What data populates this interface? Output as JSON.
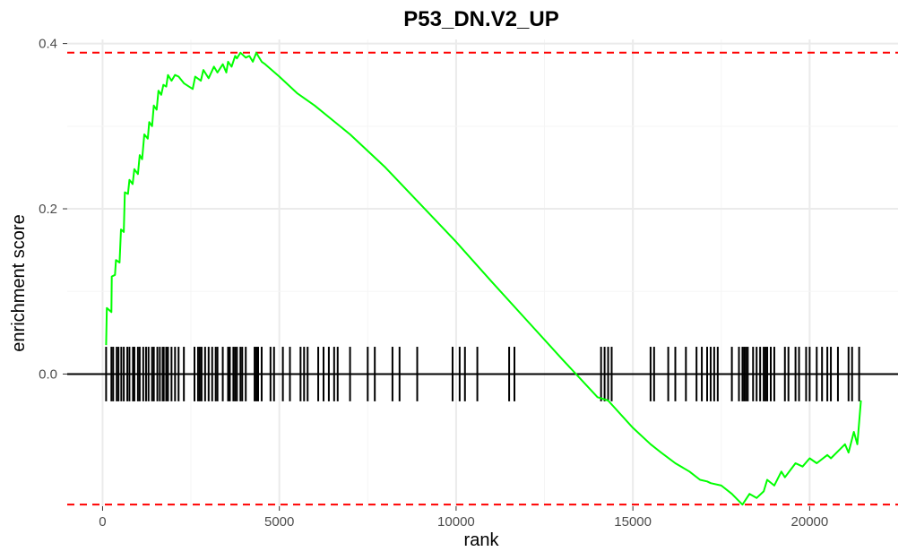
{
  "chart_data": {
    "type": "line",
    "title": "P53_DN.V2_UP",
    "xlabel": "rank",
    "ylabel": "enrichment score",
    "xlim": [
      -1000,
      22500
    ],
    "ylim": [
      -0.16,
      0.405
    ],
    "x_ticks": [
      0,
      5000,
      10000,
      15000,
      20000
    ],
    "x_tick_labels": [
      "0",
      "5000",
      "10000",
      "15000",
      "20000"
    ],
    "y_ticks": [
      0.0,
      0.2,
      0.4
    ],
    "y_tick_labels": [
      "0.0",
      "0.2",
      "0.4"
    ],
    "grid": true,
    "reference_lines": [
      {
        "kind": "max",
        "y": 0.389,
        "color": "#ff0000",
        "style": "dashed"
      },
      {
        "kind": "min",
        "y": -0.158,
        "color": "#ff0000",
        "style": "dashed"
      },
      {
        "kind": "zero",
        "y": 0.0,
        "color": "#000000",
        "style": "solid"
      }
    ],
    "series": [
      {
        "color": "#00ff00",
        "x": [
          100,
          120,
          250,
          260,
          350,
          380,
          480,
          520,
          600,
          630,
          720,
          760,
          850,
          900,
          1000,
          1050,
          1120,
          1180,
          1280,
          1320,
          1400,
          1450,
          1530,
          1580,
          1660,
          1720,
          1800,
          1850,
          1950,
          2050,
          2150,
          2300,
          2550,
          2620,
          2780,
          2850,
          3000,
          3150,
          3250,
          3400,
          3500,
          3550,
          3650,
          3750,
          3800,
          3900,
          4050,
          4150,
          4250,
          4350,
          4400,
          4500,
          4600,
          5000,
          5500,
          6000,
          7000,
          8000,
          9000,
          10000,
          11000,
          12000,
          13000,
          14000,
          14300,
          15000,
          15500,
          15800,
          16200,
          16600,
          16900,
          17100,
          17200,
          17500,
          17800,
          18100,
          18300,
          18500,
          18700,
          18800,
          19000,
          19200,
          19300,
          19600,
          19800,
          20000,
          20200,
          20500,
          20600,
          21000,
          21100,
          21250,
          21350,
          21450
        ],
        "y": [
          0.035,
          0.08,
          0.075,
          0.118,
          0.12,
          0.138,
          0.135,
          0.175,
          0.172,
          0.22,
          0.218,
          0.235,
          0.23,
          0.248,
          0.242,
          0.265,
          0.26,
          0.29,
          0.285,
          0.305,
          0.3,
          0.325,
          0.32,
          0.343,
          0.338,
          0.35,
          0.348,
          0.362,
          0.355,
          0.362,
          0.36,
          0.352,
          0.345,
          0.36,
          0.355,
          0.368,
          0.358,
          0.372,
          0.365,
          0.375,
          0.365,
          0.378,
          0.372,
          0.385,
          0.382,
          0.389,
          0.383,
          0.385,
          0.378,
          0.389,
          0.385,
          0.378,
          0.375,
          0.36,
          0.34,
          0.325,
          0.29,
          0.25,
          0.205,
          0.16,
          0.112,
          0.065,
          0.018,
          -0.028,
          -0.032,
          -0.065,
          -0.085,
          -0.095,
          -0.108,
          -0.118,
          -0.128,
          -0.13,
          -0.132,
          -0.135,
          -0.145,
          -0.158,
          -0.145,
          -0.15,
          -0.142,
          -0.128,
          -0.135,
          -0.118,
          -0.125,
          -0.108,
          -0.112,
          -0.102,
          -0.108,
          -0.098,
          -0.102,
          -0.085,
          -0.095,
          -0.07,
          -0.085,
          -0.032
        ]
      }
    ],
    "rug": {
      "y_range": [
        -0.033,
        0.033
      ],
      "color": "#000000",
      "positions": [
        100,
        250,
        300,
        400,
        450,
        530,
        600,
        700,
        760,
        860,
        900,
        1000,
        1050,
        1150,
        1230,
        1300,
        1400,
        1450,
        1550,
        1620,
        1700,
        1730,
        1800,
        1850,
        1950,
        2050,
        2150,
        2300,
        2600,
        2700,
        2750,
        2800,
        2900,
        3000,
        3100,
        3200,
        3250,
        3400,
        3550,
        3600,
        3700,
        3750,
        3800,
        3900,
        3950,
        4050,
        4300,
        4350,
        4400,
        4500,
        4750,
        4850,
        5100,
        5300,
        5600,
        5700,
        5800,
        6100,
        6250,
        6400,
        6550,
        6650,
        7000,
        7500,
        7700,
        8200,
        8400,
        8900,
        9900,
        10100,
        10250,
        10600,
        11500,
        11650,
        14100,
        14200,
        14300,
        14400,
        15500,
        15600,
        16000,
        16200,
        16500,
        16800,
        16950,
        17100,
        17200,
        17300,
        17400,
        17800,
        18000,
        18100,
        18150,
        18200,
        18250,
        18400,
        18500,
        18600,
        18700,
        18750,
        18800,
        18900,
        19000,
        19300,
        19400,
        19600,
        19700,
        19900,
        20000,
        20200,
        20350,
        20500,
        20600,
        20800,
        21100,
        21200,
        21400
      ]
    }
  }
}
